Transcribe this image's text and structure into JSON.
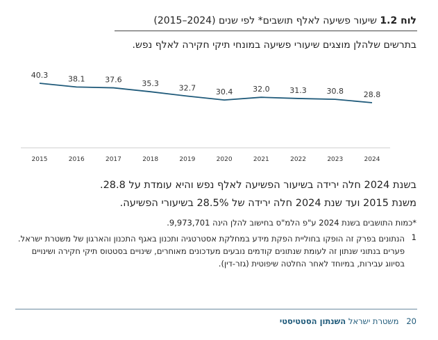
{
  "header": {
    "label": "לוח 1.2",
    "title": "שיעור פשיעה לאלף תושבים* לפי שנים (2024–2015)"
  },
  "subtitle": "בתרשים שלהלן מוצגים שיעורי פשיעה במונחי תיקי חקירה לאלף נפש.",
  "chart_data": {
    "type": "line",
    "categories": [
      "2015",
      "2016",
      "2017",
      "2018",
      "2019",
      "2020",
      "2021",
      "2022",
      "2023",
      "2024"
    ],
    "values": [
      40.3,
      38.1,
      37.6,
      35.3,
      32.7,
      30.4,
      32.0,
      31.3,
      30.8,
      28.8
    ],
    "value_labels": [
      "40.3",
      "38.1",
      "37.6",
      "35.3",
      "32.7",
      "30.4",
      "32.0",
      "31.3",
      "30.8",
      "28.8"
    ],
    "color": "#1f5a7a"
  },
  "paragraphs": [
    "בשנת 2024 חלה ירידה בשיעור הפשיעה לאלף נפש והיא עומדת על 28.8.",
    "משנת 2015 ועד שנת 2024 חלה ירידה של 28.5% בשיעורי הפשיעה."
  ],
  "footnote": "*כמות התושבים בשנת 2024 ע\"פ הלמ\"ס בחישוב להלן הינה 9,973,701.",
  "note": {
    "number": "1",
    "text": "הנתונים בפרק זה הופקו בחוליית הפקת מידע במחלקת אסטרטגיה ותכנון באגף התכנון והארגון של משטרת ישראל. פערים בנתוני שנתון זה לעומת שנתונים קודמים נובעים מעדכונים מאוחרים, שינויים בסטטוס תיקי חקירה ושינויים בסיווג עבירות, במיוחד לאחר החלטה שיפוטית (גזר-דין)."
  },
  "footer": {
    "page": "20",
    "org": "משטרת ישראל",
    "publication": "השנתון הסטטיסטי"
  }
}
